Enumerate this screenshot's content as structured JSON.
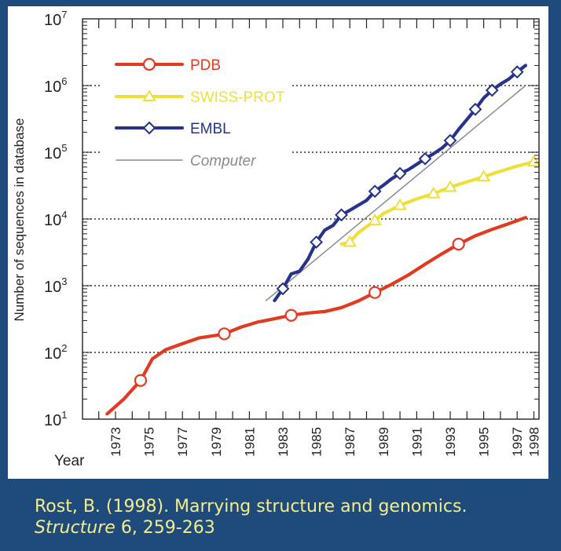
{
  "colors": {
    "slide_background": "#1f4a7c",
    "panel_background": "#ffffff",
    "caption_text": "#f4ee8a",
    "pdb": "#e23a1e",
    "swiss_prot": "#eedf3c",
    "embl": "#25338a",
    "computer": "#8a8a8a"
  },
  "caption": {
    "line1": "Rost, B. (1998). Marrying structure and genomics.",
    "journal": "Structure",
    "rest": " 6, 259-263"
  },
  "chart_data": {
    "type": "line",
    "ylabel": "Number of sequences in database",
    "xlabel": "Year",
    "yscale": "log",
    "ylim": [
      10,
      10000000
    ],
    "xlim": [
      1971,
      1998.3
    ],
    "x_ticks": [
      "1973",
      "1975",
      "1977",
      "1979",
      "1981",
      "1983",
      "1985",
      "1987",
      "1989",
      "1991",
      "1993",
      "1995",
      "1997",
      "1998"
    ],
    "y_ticks": [
      {
        "base": "10",
        "exp": "1"
      },
      {
        "base": "10",
        "exp": "2"
      },
      {
        "base": "10",
        "exp": "3"
      },
      {
        "base": "10",
        "exp": "4"
      },
      {
        "base": "10",
        "exp": "5"
      },
      {
        "base": "10",
        "exp": "6"
      },
      {
        "base": "10",
        "exp": "7"
      }
    ],
    "gridlines": "horizontal dotted at each decade",
    "legend_position": "top-left",
    "series": [
      {
        "name": "PDB",
        "color": "#e23a1e",
        "marker": "circle",
        "style": "solid",
        "x": [
          1972.5,
          1973.5,
          1974.5,
          1975.2,
          1976,
          1977,
          1978,
          1979,
          1979.5,
          1980.5,
          1981.5,
          1982.5,
          1983.5,
          1984.5,
          1985.5,
          1986.5,
          1987.5,
          1988.5,
          1989.5,
          1990.5,
          1991.5,
          1992.5,
          1993.5,
          1994.5,
          1995.5,
          1996.5,
          1997.5
        ],
        "y": [
          12,
          20,
          38,
          80,
          110,
          135,
          165,
          180,
          190,
          240,
          285,
          320,
          360,
          390,
          410,
          470,
          590,
          790,
          1050,
          1450,
          2100,
          3000,
          4200,
          5600,
          7000,
          8500,
          10500
        ],
        "markers_x": [
          1974.5,
          1979.5,
          1983.5,
          1988.5,
          1993.5
        ]
      },
      {
        "name": "SWISS-PROT",
        "color": "#eedf3c",
        "marker": "triangle",
        "style": "solid",
        "x": [
          1986.5,
          1987,
          1987.5,
          1988.5,
          1989,
          1990,
          1991,
          1992,
          1993,
          1994,
          1995,
          1996,
          1997,
          1998
        ],
        "y": [
          4200,
          4500,
          6200,
          9500,
          12000,
          16000,
          20000,
          24000,
          30000,
          36000,
          43000,
          52000,
          62000,
          72000
        ],
        "markers_x": [
          1987,
          1988.5,
          1990,
          1992,
          1993,
          1995,
          1998
        ]
      },
      {
        "name": "EMBL",
        "color": "#25338a",
        "marker": "diamond",
        "style": "solid",
        "x": [
          1982.5,
          1983,
          1983.5,
          1984,
          1984.5,
          1985,
          1985.5,
          1986,
          1986.5,
          1987,
          1987.5,
          1988,
          1988.5,
          1989,
          1989.5,
          1990,
          1990.5,
          1991,
          1991.5,
          1992,
          1992.5,
          1993,
          1993.5,
          1994,
          1994.5,
          1995,
          1995.5,
          1996,
          1996.5,
          1997,
          1997.5
        ],
        "y": [
          600,
          900,
          1500,
          1650,
          2500,
          4500,
          6800,
          8000,
          11500,
          13500,
          16000,
          19000,
          26000,
          32000,
          40000,
          48000,
          55000,
          66000,
          80000,
          95000,
          115000,
          150000,
          220000,
          310000,
          440000,
          650000,
          850000,
          1050000,
          1250000,
          1600000,
          2000000
        ],
        "markers_x": [
          1983,
          1985,
          1986.5,
          1988.5,
          1990,
          1991.5,
          1993,
          1994.5,
          1995.5,
          1997
        ]
      },
      {
        "name": "Computer",
        "color": "#8a8a8a",
        "marker": "none",
        "style": "thin",
        "x": [
          1982,
          1997.5
        ],
        "y": [
          600,
          1000000
        ],
        "markers_x": []
      }
    ]
  }
}
